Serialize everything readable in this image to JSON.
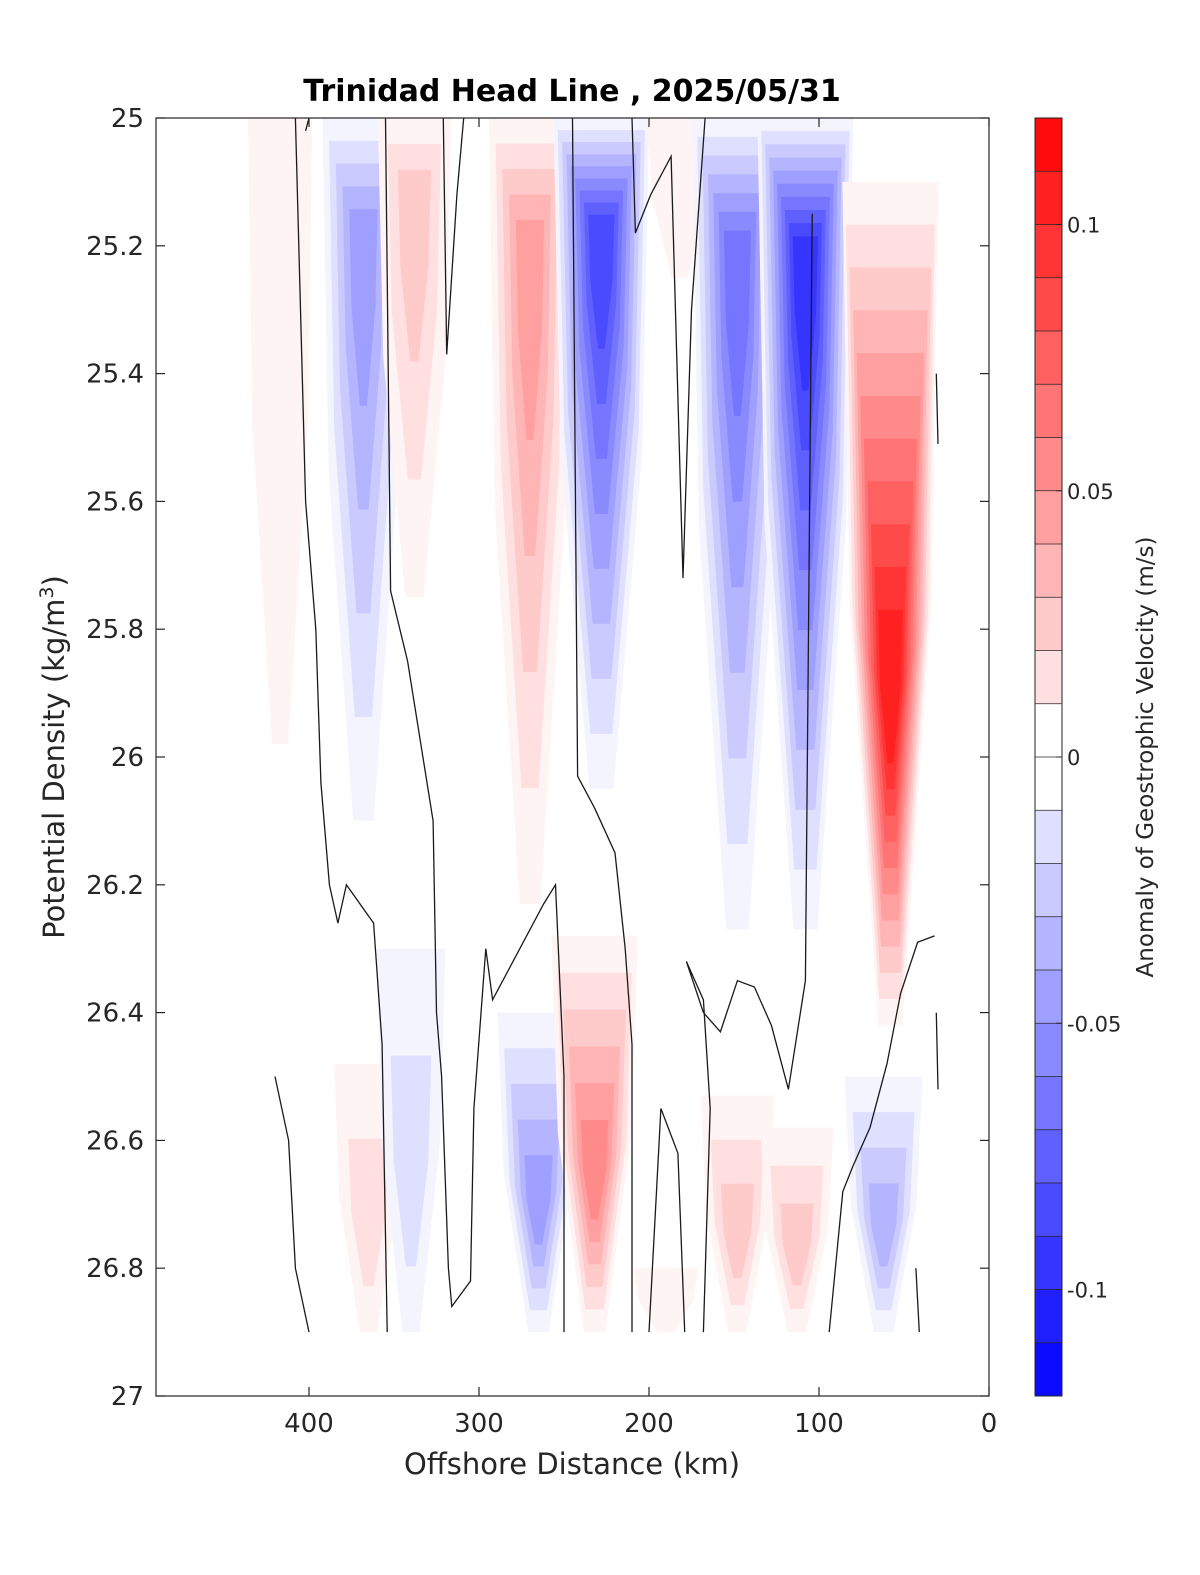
{
  "chart_data": {
    "type": "heatmap",
    "title": "Trinidad Head Line , 2025/05/31",
    "xlabel": "Offshore Distance (km)",
    "ylabel_main": "Potential Density (kg/m",
    "ylabel_sup": "3",
    "ylabel_end": ")",
    "xlim": [
      490,
      0
    ],
    "ylim": [
      25,
      27
    ],
    "x_reversed": true,
    "y_reversed": true,
    "x_ticks": [
      400,
      300,
      200,
      100,
      0
    ],
    "y_ticks": [
      "25",
      "25.2",
      "25.4",
      "25.6",
      "25.8",
      "26",
      "26.2",
      "26.4",
      "26.6",
      "26.8",
      "27"
    ],
    "colorbar": {
      "label": "Anomaly of Geostrophic Velocity (m/s)",
      "range": [
        -0.12,
        0.12
      ],
      "step": 0.01,
      "tick_values": [
        0.1,
        0.05,
        0,
        -0.05,
        -0.1
      ],
      "tick_labels": [
        "0.1",
        "0.05",
        "0",
        "-0.05",
        "-0.1"
      ],
      "colormap": "blue-white-red"
    },
    "velocity_cores": [
      {
        "x": 417,
        "y_top": 25.0,
        "y_bottom": 25.98,
        "peak": 0.015
      },
      {
        "x": 368,
        "y_top": 25.0,
        "y_bottom": 26.1,
        "peak": -0.05
      },
      {
        "x": 338,
        "y_top": 25.0,
        "y_bottom": 25.75,
        "peak": 0.035
      },
      {
        "x": 270,
        "y_top": 25.0,
        "y_bottom": 26.23,
        "peak": 0.055
      },
      {
        "x": 228,
        "y_top": 25.0,
        "y_bottom": 26.05,
        "peak": -0.095
      },
      {
        "x": 182,
        "y_top": 25.0,
        "y_bottom": 25.25,
        "peak": 0.015
      },
      {
        "x": 148,
        "y_top": 25.0,
        "y_bottom": 26.27,
        "peak": -0.07
      },
      {
        "x": 108,
        "y_top": 25.0,
        "y_bottom": 26.27,
        "peak": -0.1
      },
      {
        "x": 58,
        "y_top": 25.1,
        "y_bottom": 26.42,
        "peak": 0.11
      },
      {
        "x": 365,
        "y_top": 26.48,
        "y_bottom": 26.9,
        "peak": 0.025
      },
      {
        "x": 340,
        "y_top": 26.3,
        "y_bottom": 26.9,
        "peak": -0.025
      },
      {
        "x": 265,
        "y_top": 26.4,
        "y_bottom": 26.9,
        "peak": -0.05
      },
      {
        "x": 232,
        "y_top": 26.28,
        "y_bottom": 26.9,
        "peak": 0.06
      },
      {
        "x": 190,
        "y_top": 26.8,
        "y_bottom": 26.9,
        "peak": 0.015
      },
      {
        "x": 148,
        "y_top": 26.53,
        "y_bottom": 26.9,
        "peak": 0.035
      },
      {
        "x": 113,
        "y_top": 26.58,
        "y_bottom": 26.9,
        "peak": 0.035
      },
      {
        "x": 62,
        "y_top": 26.5,
        "y_bottom": 26.9,
        "peak": -0.04
      }
    ],
    "zero_contours": [
      [
        [
          420,
          26.5
        ],
        [
          412,
          26.6
        ],
        [
          408,
          26.8
        ],
        [
          400,
          26.9
        ]
      ],
      [
        [
          402,
          25.02
        ],
        [
          400,
          25.0
        ]
      ],
      [
        [
          408,
          25.0
        ],
        [
          405,
          25.3
        ],
        [
          402,
          25.6
        ],
        [
          396,
          25.8
        ],
        [
          393,
          26.04
        ],
        [
          388,
          26.2
        ],
        [
          383,
          26.26
        ],
        [
          378,
          26.2
        ],
        [
          362,
          26.26
        ],
        [
          357,
          26.45
        ],
        [
          354,
          26.9
        ]
      ],
      [
        [
          355,
          25.0
        ],
        [
          352,
          25.74
        ],
        [
          342,
          25.85
        ],
        [
          327,
          26.1
        ],
        [
          325,
          26.4
        ],
        [
          322,
          26.5
        ],
        [
          318,
          26.8
        ],
        [
          316,
          26.86
        ],
        [
          305,
          26.82
        ],
        [
          303,
          26.55
        ],
        [
          296,
          26.3
        ],
        [
          292,
          26.38
        ],
        [
          276,
          26.3
        ],
        [
          262,
          26.23
        ],
        [
          255,
          26.2
        ],
        [
          250,
          26.5
        ],
        [
          250,
          26.9
        ]
      ],
      [
        [
          321,
          25.0
        ],
        [
          319,
          25.37
        ],
        [
          313,
          25.12
        ],
        [
          309,
          25.0
        ]
      ],
      [
        [
          245,
          25.0
        ],
        [
          242,
          26.03
        ],
        [
          232,
          26.08
        ],
        [
          220,
          26.15
        ],
        [
          214,
          26.3
        ],
        [
          210,
          26.45
        ],
        [
          210,
          26.9
        ]
      ],
      [
        [
          210,
          25.0
        ],
        [
          208,
          25.18
        ],
        [
          199,
          25.12
        ],
        [
          187,
          25.06
        ],
        [
          180,
          25.72
        ],
        [
          175,
          25.3
        ],
        [
          167,
          25.0
        ]
      ],
      [
        [
          200,
          26.9
        ],
        [
          198,
          26.8
        ],
        [
          193,
          26.55
        ],
        [
          183,
          26.62
        ],
        [
          179,
          26.9
        ]
      ],
      [
        [
          168,
          26.9
        ],
        [
          164,
          26.55
        ],
        [
          168,
          26.38
        ],
        [
          178,
          26.32
        ],
        [
          168,
          26.4
        ],
        [
          158,
          26.43
        ],
        [
          148,
          26.35
        ],
        [
          138,
          26.36
        ],
        [
          128,
          26.42
        ],
        [
          118,
          26.52
        ],
        [
          108,
          26.35
        ],
        [
          104,
          25.15
        ]
      ],
      [
        [
          94,
          26.9
        ],
        [
          86,
          26.68
        ],
        [
          80,
          26.64
        ],
        [
          70,
          26.58
        ],
        [
          60,
          26.48
        ],
        [
          52,
          26.37
        ],
        [
          42,
          26.29
        ],
        [
          32,
          26.28
        ]
      ],
      [
        [
          31,
          25.4
        ],
        [
          30,
          25.51
        ]
      ],
      [
        [
          31,
          26.4
        ],
        [
          30,
          26.52
        ]
      ],
      [
        [
          43,
          26.8
        ],
        [
          41,
          26.9
        ]
      ]
    ]
  }
}
